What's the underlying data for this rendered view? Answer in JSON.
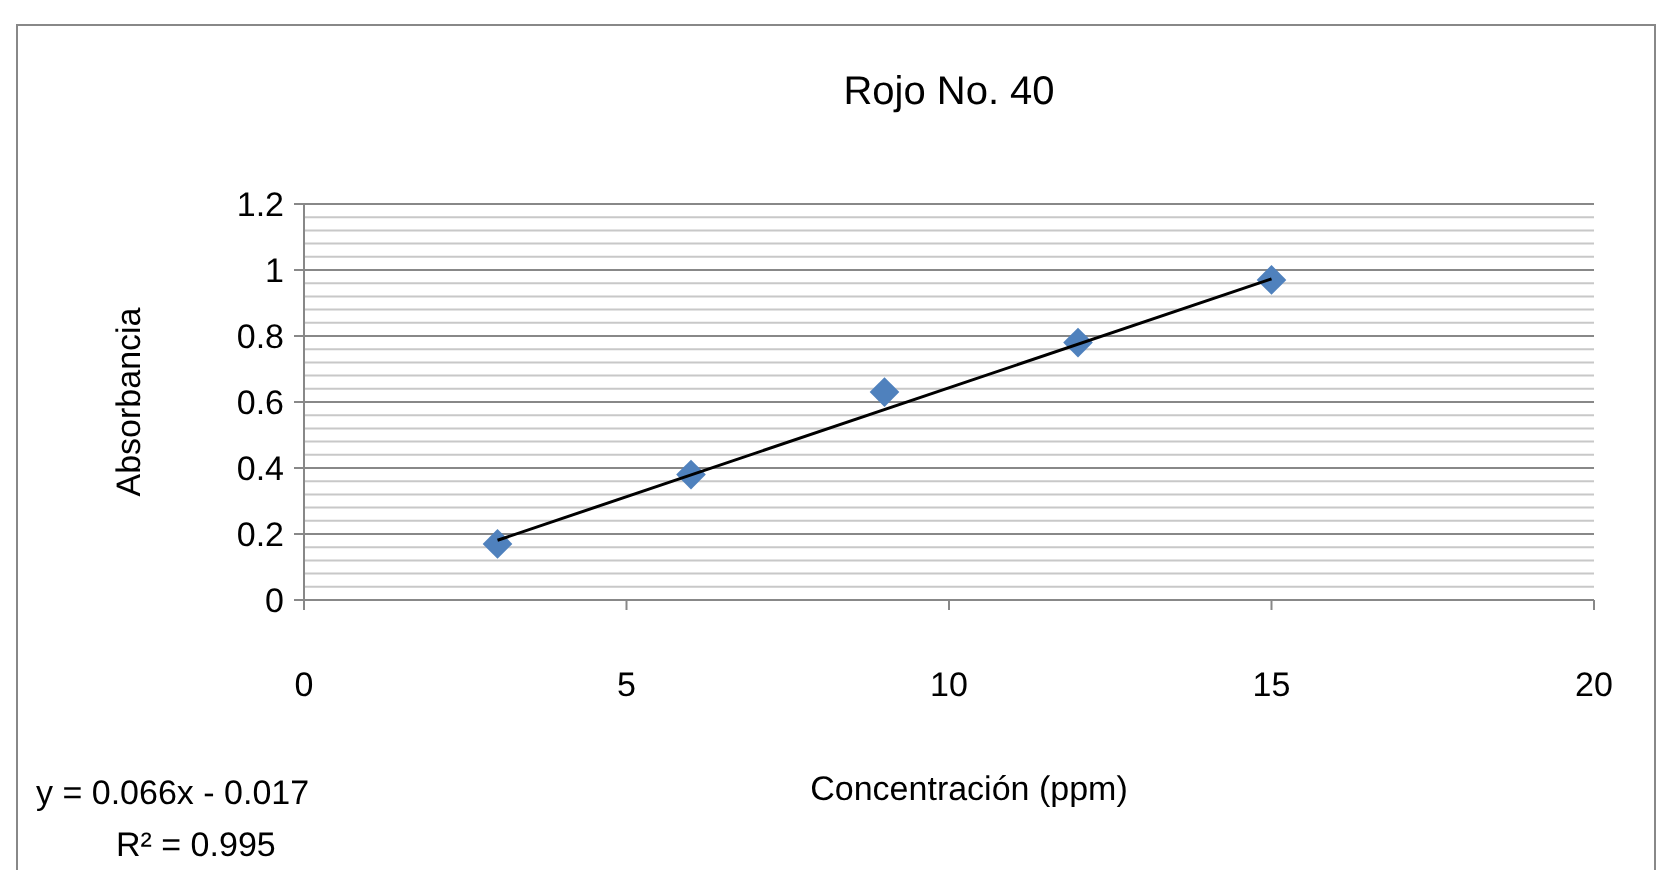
{
  "chart_data": {
    "type": "scatter",
    "title": "Rojo No. 40",
    "xlabel": "Concentración (ppm)",
    "ylabel": "Absorbancia",
    "annotations": [
      "y = 0.066x - 0.017",
      "R² = 0.995"
    ],
    "series": [
      {
        "color": "#4f81bd",
        "marker": "diamond",
        "x": [
          3,
          6,
          9,
          12,
          15
        ],
        "values": [
          0.17,
          0.38,
          0.63,
          0.78,
          0.97
        ]
      },
      {
        "type": "line",
        "color": "#000000",
        "marker": "none",
        "line_style": "solid",
        "x": [
          3,
          15
        ],
        "values": [
          0.181,
          0.973
        ]
      }
    ],
    "xlim": [
      0,
      20
    ],
    "xticks": [
      0,
      5,
      10,
      15,
      20
    ],
    "ylim": [
      0,
      1.2
    ],
    "yticks": [
      0,
      0.2,
      0.4,
      0.6,
      0.8,
      1,
      1.2
    ],
    "grid": "y"
  }
}
